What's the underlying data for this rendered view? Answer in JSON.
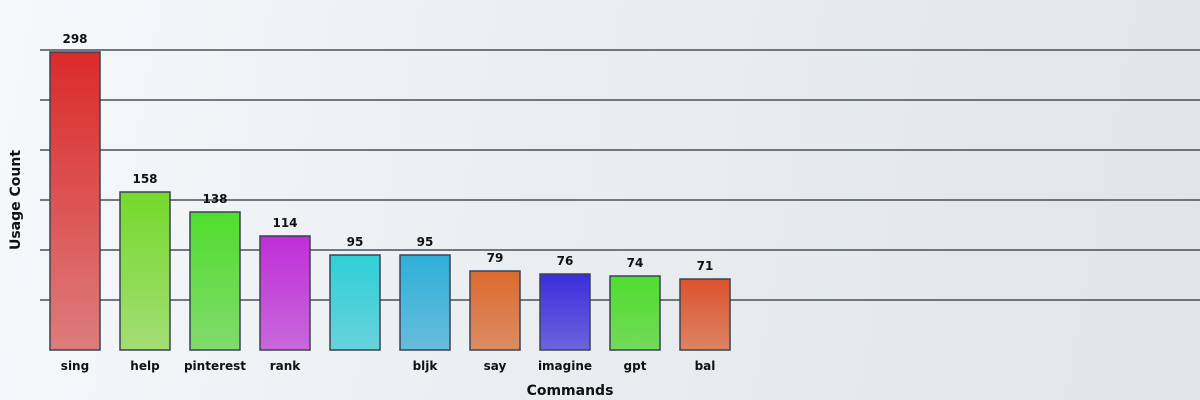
{
  "chart_data": {
    "type": "bar",
    "categories": [
      "sing",
      "help",
      "pinterest",
      "rank",
      "",
      "bljk",
      "say",
      "imagine",
      "gpt",
      "bal"
    ],
    "values": [
      298,
      158,
      138,
      114,
      95,
      95,
      79,
      76,
      74,
      71
    ],
    "title": "",
    "xlabel": "Commands",
    "ylabel": "Usage Count",
    "ylim": [
      0,
      300
    ],
    "grid": true,
    "legend": "none",
    "bar_colors": [
      [
        "#dc2a2a",
        "#dd7c7c"
      ],
      [
        "#74da2c",
        "#a4dc74"
      ],
      [
        "#4fde2e",
        "#82da6c"
      ],
      [
        "#bf2ed8",
        "#c868da"
      ],
      [
        "#2ed0d8",
        "#68d2da"
      ],
      [
        "#2eb0d8",
        "#68bcdc"
      ],
      [
        "#dc6a2e",
        "#dc8c64"
      ],
      [
        "#3a2edc",
        "#6a64dc"
      ],
      [
        "#4ede2e",
        "#74da5a"
      ],
      [
        "#dc522e",
        "#dc8464"
      ]
    ],
    "bar_border_color": "#3a4254",
    "grid_color": "#4a4f58"
  }
}
